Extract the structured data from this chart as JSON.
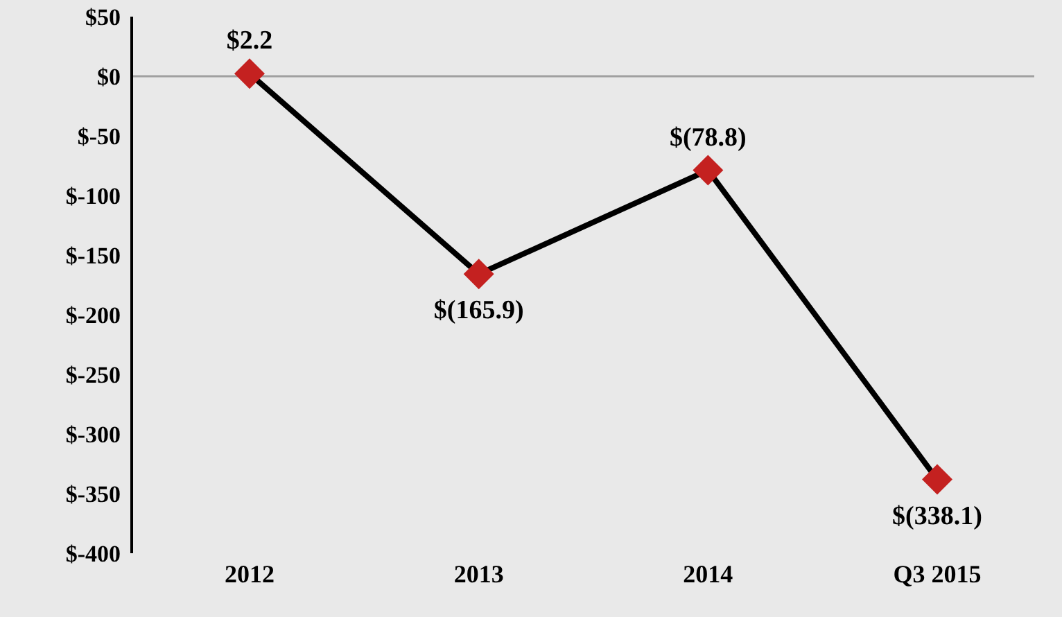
{
  "chart_data": {
    "type": "line",
    "categories": [
      "2012",
      "2013",
      "2014",
      "Q3 2015"
    ],
    "series": [
      {
        "color": "#c42120",
        "values": [
          2.2,
          -165.9,
          -78.8,
          -338.1
        ],
        "value_labels": [
          "$2.2",
          "$(165.9)",
          "$(78.8)",
          "$(338.1)"
        ]
      }
    ],
    "ylim": [
      -400,
      50
    ],
    "yticks": [
      {
        "value": 50,
        "label": "$50"
      },
      {
        "value": 0,
        "label": "$0"
      },
      {
        "value": -50,
        "label": "$-50"
      },
      {
        "value": -100,
        "label": "$-100"
      },
      {
        "value": -150,
        "label": "$-150"
      },
      {
        "value": -200,
        "label": "$-200"
      },
      {
        "value": -250,
        "label": "$-250"
      },
      {
        "value": -300,
        "label": "$-300"
      },
      {
        "value": -350,
        "label": "$-350"
      },
      {
        "value": -400,
        "label": "$-400"
      }
    ],
    "ref_lines": [
      {
        "axis": "y",
        "value": 0,
        "color": "#a0a0a0"
      }
    ],
    "grid": false,
    "legend": false,
    "marker": "diamond",
    "line_style": "solid"
  }
}
